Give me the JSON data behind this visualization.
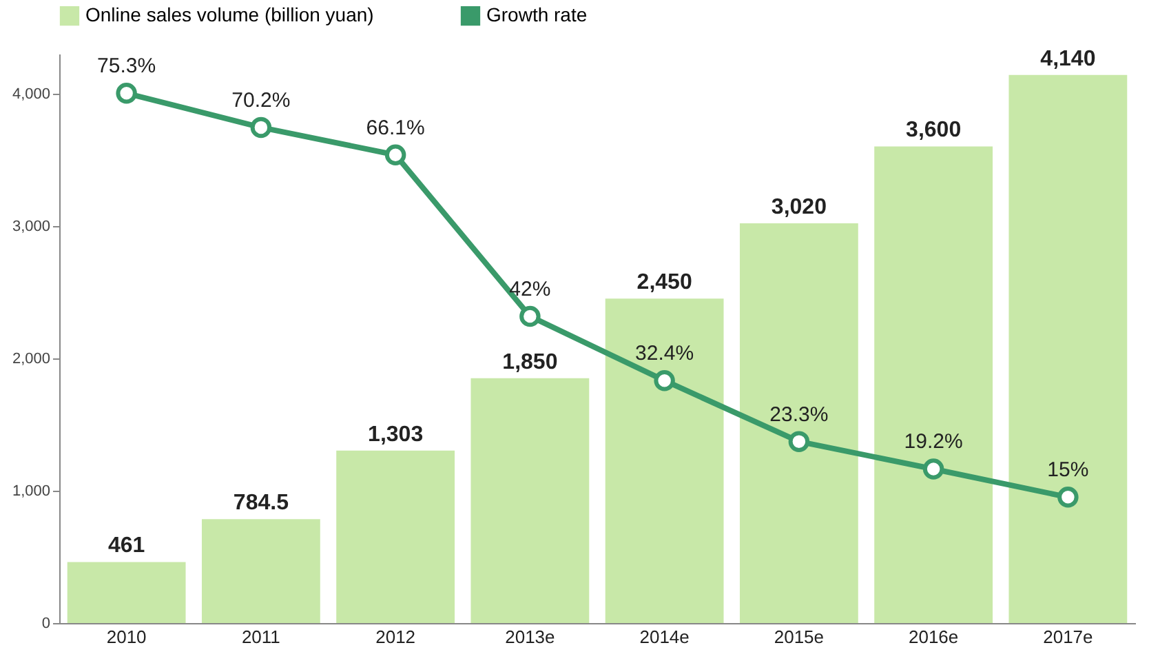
{
  "chart_data": {
    "type": "bar",
    "categories": [
      "2010",
      "2011",
      "2012",
      "2013e",
      "2014e",
      "2015e",
      "2016e",
      "2017e"
    ],
    "series": [
      {
        "name": "Online sales volume (billion yuan)",
        "color": "#c8e8a8",
        "values": [
          461,
          784.5,
          1303,
          1850,
          2450,
          3020,
          3600,
          4140
        ],
        "value_labels": [
          "461",
          "784.5",
          "1,303",
          "1,850",
          "2,450",
          "3,020",
          "3,600",
          "4,140"
        ]
      },
      {
        "name": "Growth rate",
        "type": "line",
        "axis": "y2",
        "color": "#3a9a6a",
        "values": [
          75.3,
          70.2,
          66.1,
          42,
          32.4,
          23.3,
          19.2,
          15
        ],
        "value_labels": [
          "75.3%",
          "70.2%",
          "66.1%",
          "42%",
          "32.4%",
          "23.3%",
          "19.2%",
          "15%"
        ]
      }
    ],
    "ylim": [
      0,
      4300
    ],
    "yticks": [
      0,
      {
        "value": 1000,
        "label": "1,000"
      },
      {
        "value": 2000,
        "label": "2,000"
      },
      {
        "value": 3000,
        "label": "3,000"
      },
      {
        "value": 4000,
        "label": "4,000"
      }
    ],
    "y2lim": [
      -3.8,
      81.2
    ],
    "legend": "top left",
    "marker": "circle"
  }
}
